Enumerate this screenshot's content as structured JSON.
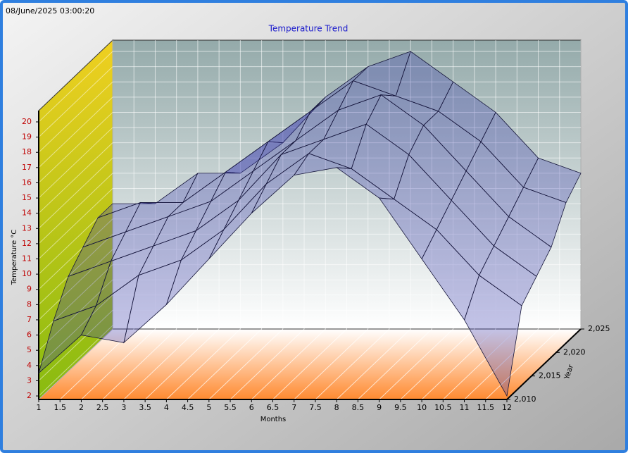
{
  "timestamp": "08/June/2025 03:00:20",
  "chart_data": {
    "type": "surface3d",
    "title": "Temperature Trend",
    "x_label": "Months",
    "y_label": "Temperature °C",
    "z_label": "Year",
    "x": [
      1,
      2,
      3,
      4,
      5,
      6,
      7,
      8,
      9,
      10,
      11,
      12
    ],
    "z": [
      2010,
      2013,
      2016,
      2019,
      2022,
      2025
    ],
    "values": [
      [
        3.5,
        6,
        5.5,
        8,
        11,
        14,
        16.5,
        17,
        15,
        11,
        7,
        2
      ],
      [
        6,
        7,
        9,
        10,
        12,
        15,
        17,
        16,
        14,
        12,
        9,
        7
      ],
      [
        8,
        9,
        10,
        11,
        13,
        16,
        17,
        18,
        16,
        13,
        10,
        8
      ],
      [
        9,
        10,
        11,
        12,
        14,
        16,
        18,
        19,
        17,
        14,
        11,
        9
      ],
      [
        10,
        11,
        11,
        13,
        15,
        17,
        19,
        18,
        17,
        15,
        12,
        11
      ],
      [
        10,
        10,
        12,
        12,
        14,
        17,
        19,
        20,
        18,
        16,
        13,
        12
      ]
    ],
    "color": "#3838b0",
    "xlim": [
      1,
      12
    ],
    "ylim": [
      1.77,
      20.74
    ],
    "zlim": [
      2010,
      2025
    ],
    "xticks": [
      1,
      1.5,
      2,
      2.5,
      3,
      3.5,
      4,
      4.5,
      5,
      5.5,
      6,
      6.5,
      7,
      7.5,
      8,
      8.5,
      9,
      9.5,
      10,
      10.5,
      11,
      11.5,
      12
    ],
    "yticks": [
      2,
      3,
      4,
      5,
      6,
      7,
      8,
      9,
      10,
      11,
      12,
      13,
      14,
      15,
      16,
      17,
      18,
      19,
      20
    ],
    "zticks": [
      {
        "value": 2010,
        "label": "2,010"
      },
      {
        "value": 2015,
        "label": "2,015"
      },
      {
        "value": 2020,
        "label": "2,020"
      },
      {
        "value": 2025,
        "label": "2,025"
      }
    ],
    "grid": true
  }
}
